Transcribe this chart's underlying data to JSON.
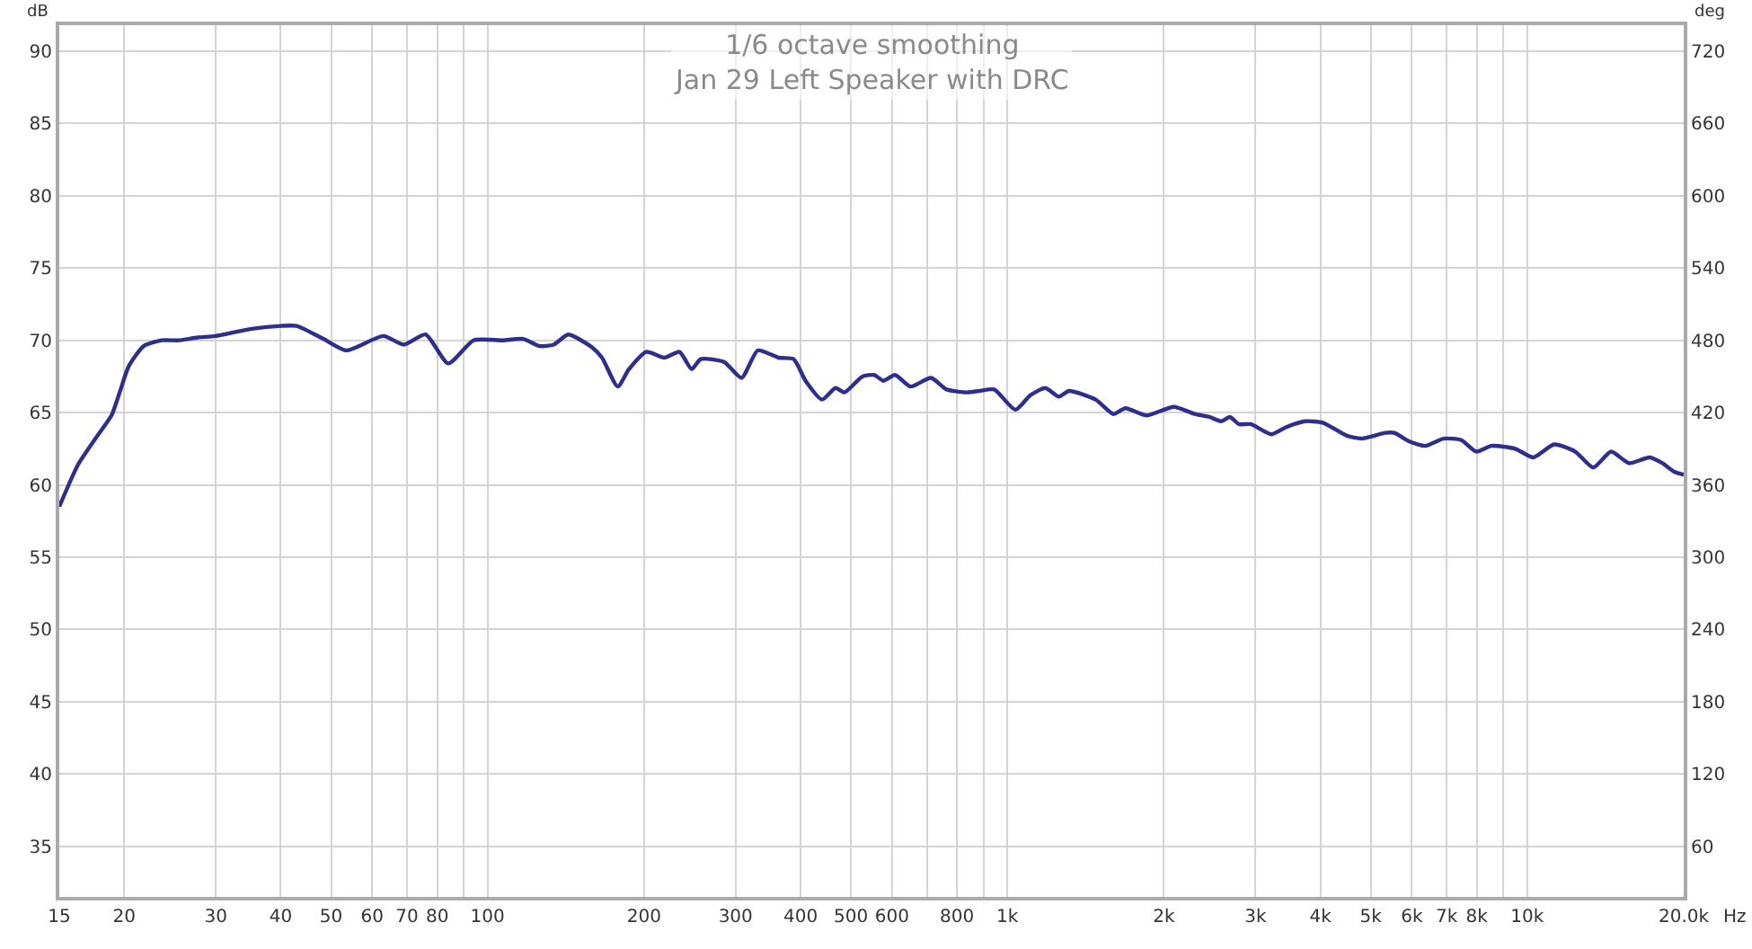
{
  "chart_data": {
    "type": "line",
    "title": "1/6 octave smoothing\nJan 29 Left Speaker with DRC",
    "xlabel": "Hz",
    "ylabel": "dB",
    "y2label": "deg",
    "log": "x",
    "grid": true,
    "marker": "none",
    "line_style": "solid",
    "xlim": [
      15,
      20000
    ],
    "xticks": [
      15,
      20,
      30,
      40,
      50,
      60,
      70,
      80,
      {
        "value": 90,
        "label": null
      },
      100,
      200,
      300,
      400,
      500,
      600,
      {
        "value": 700,
        "label": null
      },
      800,
      {
        "value": 900,
        "label": null
      },
      {
        "value": 1000,
        "label": "1k"
      },
      {
        "value": 2000,
        "label": "2k"
      },
      {
        "value": 3000,
        "label": "3k"
      },
      {
        "value": 4000,
        "label": "4k"
      },
      {
        "value": 5000,
        "label": "5k"
      },
      {
        "value": 6000,
        "label": "6k"
      },
      {
        "value": 7000,
        "label": "7k"
      },
      {
        "value": 8000,
        "label": "8k"
      },
      {
        "value": 9000,
        "label": null
      },
      {
        "value": 10000,
        "label": "10k"
      },
      {
        "value": 20000,
        "label": "20.0k"
      }
    ],
    "ylim": [
      31.5,
      91.8
    ],
    "yticks": [
      35,
      40,
      45,
      50,
      55,
      60,
      65,
      70,
      75,
      80,
      85,
      90
    ],
    "y2lim": [
      18,
      741.6
    ],
    "y2ticks": [
      60,
      120,
      180,
      240,
      300,
      360,
      420,
      480,
      540,
      600,
      660,
      720
    ],
    "x": [
      15,
      16.3,
      17.6,
      18.9,
      19.6,
      20.4,
      21.8,
      23.6,
      25.5,
      27.7,
      30,
      35.2,
      40.1,
      42.9,
      48.3,
      53.5,
      63,
      69,
      76,
      84,
      94,
      107,
      117,
      126,
      134,
      143,
      159,
      166,
      178,
      187,
      202,
      219,
      234,
      247,
      257,
      285,
      308,
      331,
      363,
      388,
      409,
      440,
      467,
      486,
      526,
      555,
      577,
      608,
      651,
      713,
      764,
      837,
      883,
      943,
      1036,
      1107,
      1183,
      1256,
      1314,
      1478,
      1600,
      1687,
      1850,
      2090,
      2292,
      2446,
      2577,
      2680,
      2787,
      2938,
      3221,
      3440,
      3738,
      4043,
      4496,
      4800,
      5335,
      5550,
      5935,
      6369,
      6897,
      7470,
      7982,
      8530,
      9484,
      10270,
      11270,
      12370,
      13400,
      14500,
      15700,
      17200,
      18200,
      19200,
      20000
    ],
    "series": [
      {
        "color": "#2e2e8c",
        "values": [
          58.5,
          61.4,
          63.2,
          64.8,
          66.4,
          68.2,
          69.6,
          70.0,
          70.0,
          70.2,
          70.3,
          70.8,
          71.0,
          71.0,
          70.1,
          69.3,
          70.3,
          69.7,
          70.4,
          68.4,
          70.0,
          70.0,
          70.1,
          69.6,
          69.7,
          70.4,
          69.5,
          68.8,
          66.8,
          68.0,
          69.2,
          68.8,
          69.2,
          68.0,
          68.7,
          68.5,
          67.4,
          69.3,
          68.8,
          68.7,
          67.2,
          65.9,
          66.7,
          66.4,
          67.5,
          67.6,
          67.2,
          67.6,
          66.8,
          67.4,
          66.6,
          66.4,
          66.5,
          66.6,
          65.2,
          66.2,
          66.7,
          66.1,
          66.5,
          65.9,
          64.9,
          65.3,
          64.8,
          65.4,
          64.9,
          64.7,
          64.4,
          64.7,
          64.2,
          64.2,
          63.5,
          64.0,
          64.4,
          64.3,
          63.4,
          63.2,
          63.6,
          63.6,
          63.0,
          62.7,
          63.2,
          63.1,
          62.3,
          62.7,
          62.5,
          61.9,
          62.8,
          62.3,
          61.2,
          62.3,
          61.5,
          61.9,
          61.5,
          60.9,
          60.7
        ]
      }
    ]
  }
}
